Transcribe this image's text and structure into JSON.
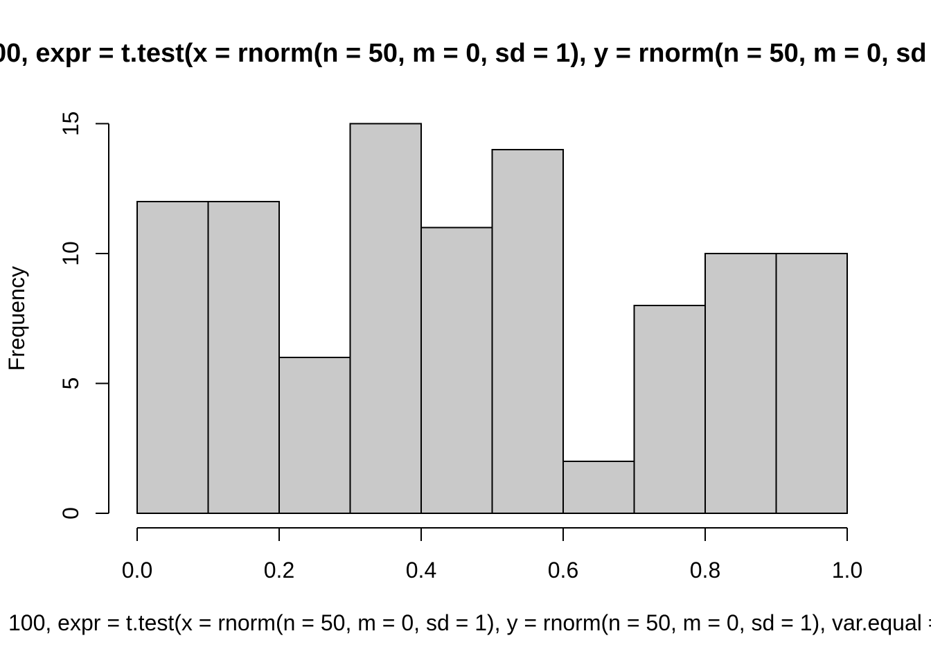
{
  "title": "00, expr = t.test(x = rnorm(n = 50, m = 0, sd = 1), y = rnorm(n = 50, m = 0, sd",
  "caption": "100, expr = t.test(x = rnorm(n = 50, m = 0, sd = 1), y = rnorm(n = 50, m = 0, sd = 1), var.equal =",
  "ylabel": "Frequency",
  "chart_data": {
    "type": "bar",
    "subtype": "histogram",
    "title_visible": "00, expr = t.test(x = rnorm(n = 50, m = 0, sd = 1), y = rnorm(n = 50, m = 0, sd",
    "xlabel_visible": "100, expr = t.test(x = rnorm(n = 50, m = 0, sd = 1), y = rnorm(n = 50, m = 0, sd = 1), var.equal =",
    "ylabel": "Frequency",
    "bin_edges": [
      0.0,
      0.1,
      0.2,
      0.3,
      0.4,
      0.5,
      0.6,
      0.7,
      0.8,
      0.9,
      1.0
    ],
    "counts": [
      12,
      12,
      6,
      15,
      11,
      14,
      2,
      8,
      10,
      10
    ],
    "xlim": [
      0.0,
      1.0
    ],
    "ylim": [
      0,
      15
    ],
    "x_ticks": [
      {
        "value": 0.0,
        "label": "0.0"
      },
      {
        "value": 0.2,
        "label": "0.2"
      },
      {
        "value": 0.4,
        "label": "0.4"
      },
      {
        "value": 0.6,
        "label": "0.6"
      },
      {
        "value": 0.8,
        "label": "0.8"
      },
      {
        "value": 1.0,
        "label": "1.0"
      }
    ],
    "y_ticks": [
      {
        "value": 0,
        "label": "0"
      },
      {
        "value": 5,
        "label": "5"
      },
      {
        "value": 10,
        "label": "10"
      },
      {
        "value": 15,
        "label": "15"
      }
    ],
    "bar_fill": "#c9c9c9",
    "line_color": "#000000",
    "grid": false
  }
}
